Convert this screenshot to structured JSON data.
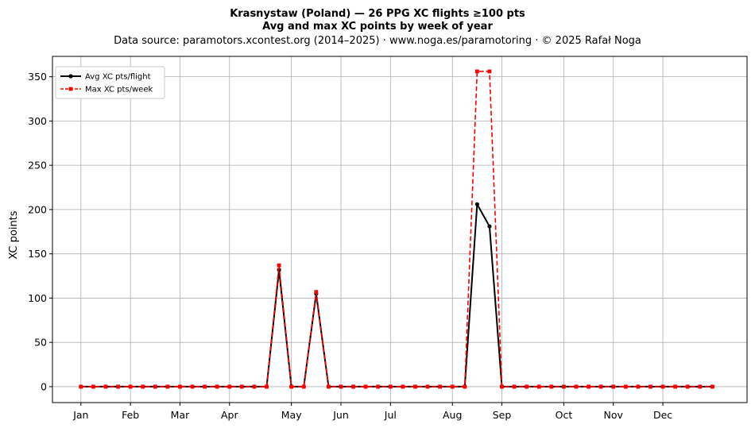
{
  "chart_data": {
    "type": "line",
    "title": "Krasnystaw (Poland)  —  26 PPG XC flights ≥100 pts",
    "subtitle": "Avg and max XC points by week of year",
    "source_line": "Data source: paramotors.xcontest.org (2014–2025)  ·  www.noga.es/paramotoring  ·  © 2025 Rafał Noga",
    "xlabel": "",
    "ylabel": "XC points",
    "xlim": [
      -2.3,
      53.8
    ],
    "ylim": [
      -18,
      373
    ],
    "yticks": [
      0,
      50,
      100,
      150,
      200,
      250,
      300,
      350
    ],
    "month_ticks": [
      {
        "label": "Jan",
        "week": 0
      },
      {
        "label": "Feb",
        "week": 4
      },
      {
        "label": "Mar",
        "week": 8
      },
      {
        "label": "Apr",
        "week": 12
      },
      {
        "label": "May",
        "week": 17
      },
      {
        "label": "Jun",
        "week": 21
      },
      {
        "label": "Jul",
        "week": 25
      },
      {
        "label": "Aug",
        "week": 30
      },
      {
        "label": "Sep",
        "week": 34
      },
      {
        "label": "Oct",
        "week": 39
      },
      {
        "label": "Nov",
        "week": 43
      },
      {
        "label": "Dec",
        "week": 47
      }
    ],
    "grid": true,
    "legend_position": "top-left",
    "x": [
      0,
      1,
      2,
      3,
      4,
      5,
      6,
      7,
      8,
      9,
      10,
      11,
      12,
      13,
      14,
      15,
      16,
      17,
      18,
      19,
      20,
      21,
      22,
      23,
      24,
      25,
      26,
      27,
      28,
      29,
      30,
      31,
      32,
      33,
      34,
      35,
      36,
      37,
      38,
      39,
      40,
      41,
      42,
      43,
      44,
      45,
      46,
      47,
      48,
      49,
      50,
      51
    ],
    "series": [
      {
        "name": "Avg XC pts/flight",
        "color": "#000000",
        "style": "solid",
        "marker": "circle",
        "values": [
          0,
          0,
          0,
          0,
          0,
          0,
          0,
          0,
          0,
          0,
          0,
          0,
          0,
          0,
          0,
          0,
          132,
          0,
          0,
          105,
          0,
          0,
          0,
          0,
          0,
          0,
          0,
          0,
          0,
          0,
          0,
          0,
          206,
          181,
          0,
          0,
          0,
          0,
          0,
          0,
          0,
          0,
          0,
          0,
          0,
          0,
          0,
          0,
          0,
          0,
          0,
          0
        ]
      },
      {
        "name": "Max XC pts/week",
        "color": "#ff0000",
        "style": "dashed",
        "marker": "square",
        "values": [
          0,
          0,
          0,
          0,
          0,
          0,
          0,
          0,
          0,
          0,
          0,
          0,
          0,
          0,
          0,
          0,
          137,
          0,
          0,
          107,
          0,
          0,
          0,
          0,
          0,
          0,
          0,
          0,
          0,
          0,
          0,
          0,
          356,
          356,
          0,
          0,
          0,
          0,
          0,
          0,
          0,
          0,
          0,
          0,
          0,
          0,
          0,
          0,
          0,
          0,
          0,
          0
        ]
      }
    ]
  }
}
